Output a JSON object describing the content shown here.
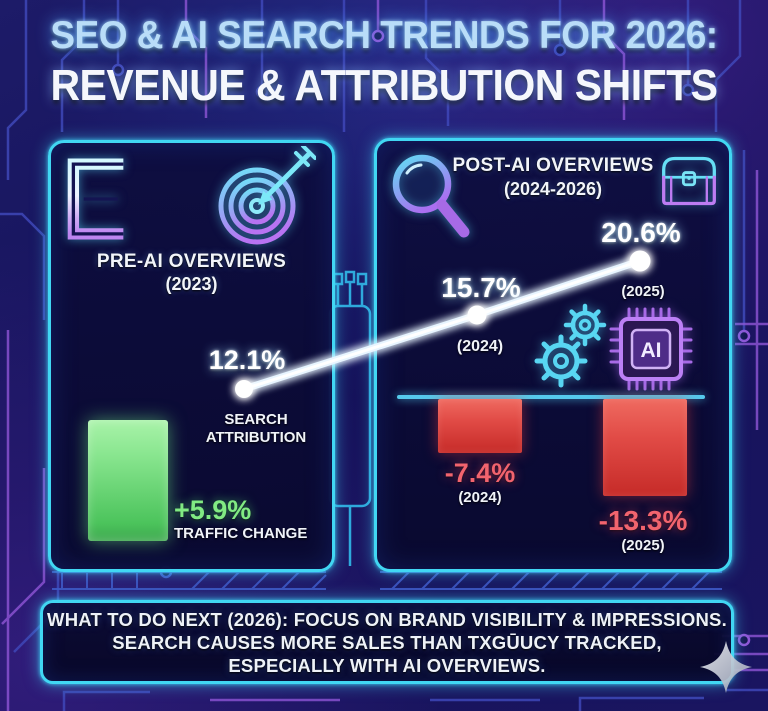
{
  "title": {
    "line1": "SEO & AI SEARCH TRENDS FOR 2026:",
    "line2": "REVENUE & ATTRIBUTION SHIFTS"
  },
  "left_panel": {
    "header": "PRE-AI OVERVIEWS",
    "period": "(2023)",
    "metric_label_line1": "SEARCH",
    "metric_label_line2": "ATTRIBUTION",
    "traffic_label": "TRAFFIC CHANGE"
  },
  "right_panel": {
    "header": "POST-AI OVERVIEWS",
    "period": "(2024-2026)",
    "point_2024_year": "(2024)",
    "point_2025_year": "(2025)",
    "bar_2024_year": "(2024)",
    "bar_2025_year": "(2025)",
    "chip_label": "AI"
  },
  "footer": {
    "line1": "WHAT TO DO NEXT (2026): FOCUS ON BRAND VISIBILITY & IMPRESSIONS.",
    "line2": "SEARCH CAUSES MORE SALES THAN TXGŪUCY TRACKED,",
    "line3": "ESPECIALLY WITH AI OVERVIEWS."
  },
  "icons": {
    "left_panel": [
      "e-logo-icon",
      "target-icon"
    ],
    "right_panel": [
      "magnifying-glass-icon",
      "treasure-chest-icon",
      "gears-icon",
      "ai-chip-icon"
    ],
    "footer": [
      "sparkle-icon"
    ]
  },
  "colors": {
    "panel_border": "#41d7f3",
    "background": "#15135a",
    "title_line1": "#b9ddf8",
    "title_line2": "#f5f7fc",
    "line_chart": "#ffffff",
    "green_bar": "#6fdd78",
    "red_bar": "#d93a3a",
    "green_text": "#81ea83",
    "red_text": "#f2646e",
    "baseline": "#55c9ec"
  },
  "chart_data": [
    {
      "type": "line",
      "title": "SEARCH ATTRIBUTION",
      "x": [
        2023,
        2024,
        2025
      ],
      "values": [
        12.1,
        15.7,
        20.6
      ],
      "labels": [
        "12.1%",
        "15.7%",
        "20.6%"
      ],
      "unit": "%",
      "grid": false,
      "legend": "none"
    },
    {
      "type": "bar",
      "title": "TRAFFIC CHANGE (PRE-AI OVERVIEWS)",
      "categories": [
        2023
      ],
      "values": [
        5.9
      ],
      "labels": [
        "+5.9%"
      ],
      "unit": "%"
    },
    {
      "type": "bar",
      "title": "TRAFFIC CHANGE (POST-AI OVERVIEWS)",
      "categories": [
        2024,
        2025
      ],
      "values": [
        -7.4,
        -13.3
      ],
      "labels": [
        "-7.4%",
        "-13.3%"
      ],
      "unit": "%"
    }
  ]
}
